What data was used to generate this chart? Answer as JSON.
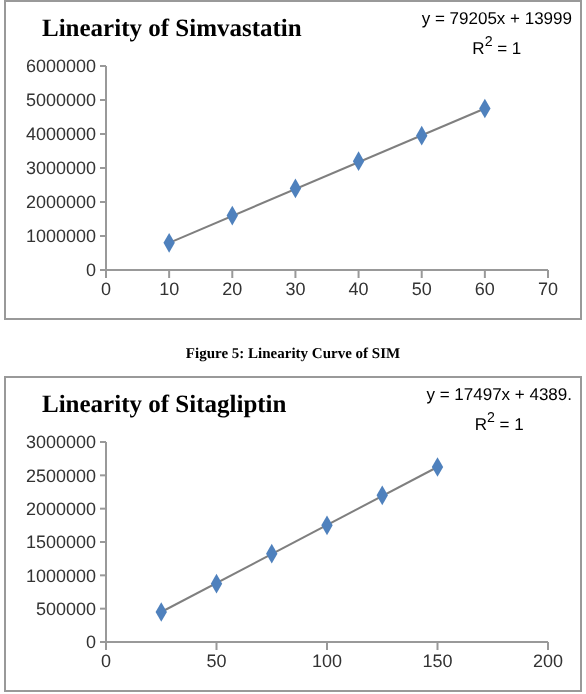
{
  "chart_data": [
    {
      "type": "scatter",
      "title": "Linearity of Simvastatin",
      "annotations": [
        "y = 79205x + 13999",
        "R$^{2}$ = 1",
        "Figure 5: Linearity Curve of SIM"
      ],
      "grid": false,
      "series": [
        {
          "color": "#4f81bd",
          "marker": "diamond",
          "x": [
            10,
            20,
            30,
            40,
            50,
            60
          ],
          "values": [
            800000,
            1600000,
            2400000,
            3200000,
            3950000,
            4750000
          ]
        },
        {
          "type": "line",
          "marker": "none",
          "color": "#7f7f7f",
          "x": [
            10,
            60
          ],
          "values": [
            800000,
            4750000
          ]
        }
      ],
      "xlim": [
        0,
        70
      ],
      "xticks": [
        0,
        10,
        20,
        30,
        40,
        50,
        60,
        70
      ],
      "ylim": [
        0,
        6000000
      ],
      "yticks": [
        0,
        1000000,
        2000000,
        3000000,
        4000000,
        5000000,
        6000000
      ]
    },
    {
      "type": "scatter",
      "title": "Linearity of Sitagliptin",
      "annotations": [
        "y = 17497x + 4389.",
        "R$^{2}$ = 1"
      ],
      "grid": false,
      "series": [
        {
          "color": "#4f81bd",
          "marker": "diamond",
          "x": [
            25,
            50,
            75,
            100,
            125,
            150
          ],
          "values": [
            450000,
            875000,
            1325000,
            1750000,
            2200000,
            2625000
          ]
        },
        {
          "type": "line",
          "marker": "none",
          "color": "#7f7f7f",
          "x": [
            25,
            150
          ],
          "values": [
            450000,
            2625000
          ]
        }
      ],
      "xlim": [
        0,
        200
      ],
      "xticks": [
        0,
        50,
        100,
        150,
        200
      ],
      "ylim": [
        0,
        3000000
      ],
      "yticks": [
        0,
        500000,
        1000000,
        1500000,
        2000000,
        2500000,
        3000000
      ]
    }
  ]
}
